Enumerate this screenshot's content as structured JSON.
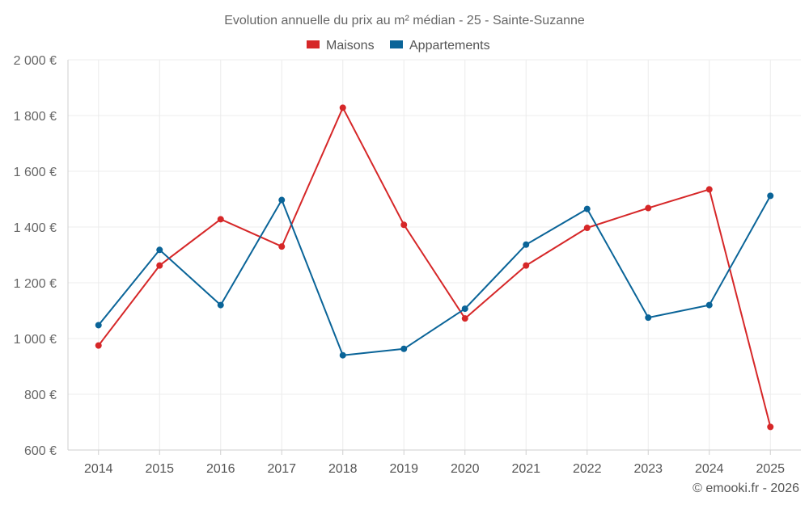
{
  "chart_data": {
    "type": "line",
    "title": "Evolution annuelle du prix au m² médian - 25 - Sainte-Suzanne",
    "xlabel": "",
    "ylabel": "",
    "categories": [
      "2014",
      "2015",
      "2016",
      "2017",
      "2018",
      "2019",
      "2020",
      "2021",
      "2022",
      "2023",
      "2024",
      "2025"
    ],
    "ylim": [
      600,
      2000
    ],
    "yticks": [
      600,
      800,
      1000,
      1200,
      1400,
      1600,
      1800,
      2000
    ],
    "ytick_labels": [
      "600 €",
      "800 €",
      "1 000 €",
      "1 200 €",
      "1 400 €",
      "1 600 €",
      "1 800 €",
      "2 000 €"
    ],
    "grid": true,
    "legend_position": "top-center",
    "series": [
      {
        "name": "Maisons",
        "color": "#d62728",
        "values": [
          975,
          1262,
          1428,
          1330,
          1828,
          1408,
          1072,
          1262,
          1397,
          1468,
          1535,
          683
        ]
      },
      {
        "name": "Appartements",
        "color": "#0a6498",
        "values": [
          1048,
          1318,
          1120,
          1497,
          940,
          963,
          1107,
          1337,
          1465,
          1075,
          1120,
          1512
        ]
      }
    ],
    "credit": "© emooki.fr - 2026"
  }
}
